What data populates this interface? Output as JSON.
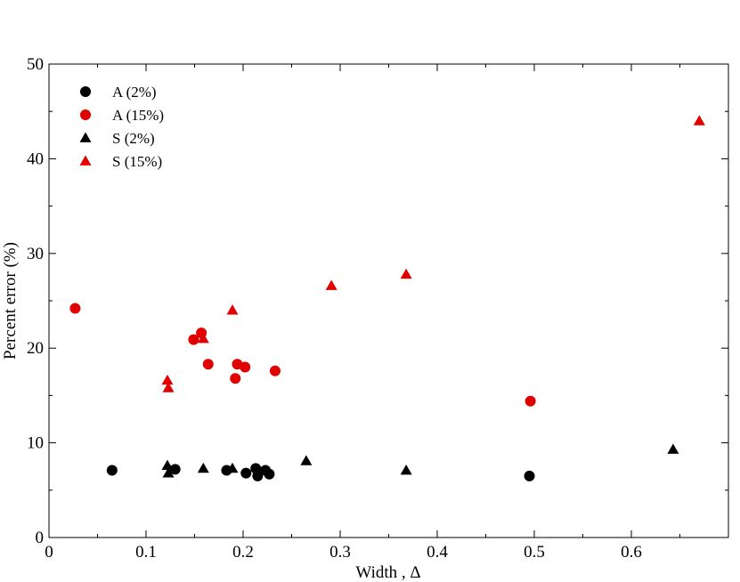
{
  "chart_data": {
    "type": "scatter",
    "xlabel": "Width , Δ",
    "ylabel": "Percent error (%)",
    "xlim": [
      0,
      0.7
    ],
    "ylim": [
      0,
      50
    ],
    "xticks": [
      0,
      0.1,
      0.2,
      0.3,
      0.4,
      0.5,
      0.6
    ],
    "xtick_labels": [
      "0",
      "0.1",
      "0.2",
      "0.3",
      "0.4",
      "0.5",
      "0.6"
    ],
    "yticks": [
      0,
      10,
      20,
      30,
      40,
      50
    ],
    "ytick_labels": [
      "0",
      "10",
      "20",
      "30",
      "40",
      "50"
    ],
    "grid": false,
    "legend_position": "top-left",
    "series": [
      {
        "name": "A (2%)",
        "marker": "circle",
        "color": "#000000",
        "points": [
          [
            0.065,
            7.1
          ],
          [
            0.13,
            7.2
          ],
          [
            0.183,
            7.1
          ],
          [
            0.203,
            6.8
          ],
          [
            0.213,
            7.3
          ],
          [
            0.215,
            6.5
          ],
          [
            0.223,
            7.1
          ],
          [
            0.227,
            6.7
          ],
          [
            0.495,
            6.5
          ]
        ]
      },
      {
        "name": "A (15%)",
        "marker": "circle",
        "color": "#e00000",
        "points": [
          [
            0.027,
            24.2
          ],
          [
            0.149,
            20.9
          ],
          [
            0.157,
            21.6
          ],
          [
            0.164,
            18.3
          ],
          [
            0.192,
            16.8
          ],
          [
            0.194,
            18.3
          ],
          [
            0.202,
            18.0
          ],
          [
            0.233,
            17.6
          ],
          [
            0.496,
            14.4
          ]
        ]
      },
      {
        "name": "S (2%)",
        "marker": "triangle",
        "color": "#000000",
        "points": [
          [
            0.122,
            7.6
          ],
          [
            0.123,
            6.8
          ],
          [
            0.159,
            7.3
          ],
          [
            0.189,
            7.3
          ],
          [
            0.265,
            8.1
          ],
          [
            0.368,
            7.1
          ],
          [
            0.643,
            9.3
          ]
        ]
      },
      {
        "name": "S (15%)",
        "marker": "triangle",
        "color": "#e00000",
        "points": [
          [
            0.122,
            16.6
          ],
          [
            0.123,
            15.8
          ],
          [
            0.159,
            21.0
          ],
          [
            0.189,
            24.0
          ],
          [
            0.291,
            26.6
          ],
          [
            0.368,
            27.8
          ],
          [
            0.67,
            44.0
          ]
        ]
      }
    ]
  }
}
